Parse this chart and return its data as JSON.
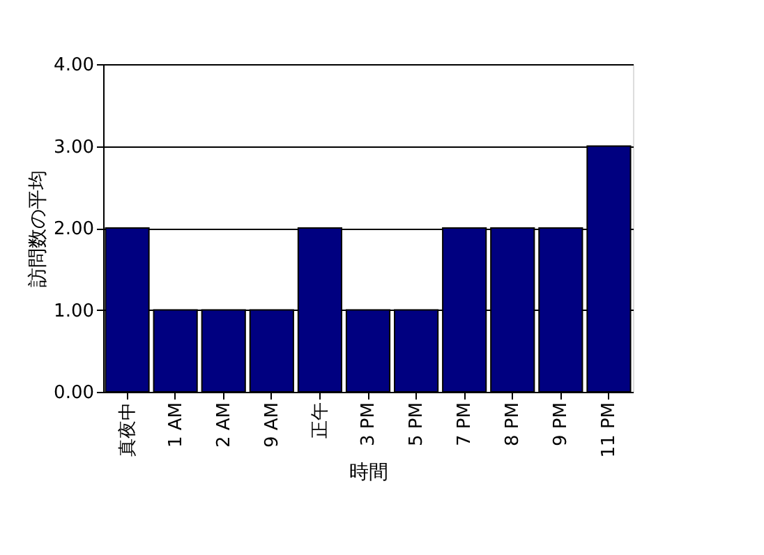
{
  "chart_data": {
    "type": "bar",
    "xlabel": "時間",
    "ylabel": "訪問数の平均",
    "categories": [
      "真夜中",
      "1 AM",
      "2 AM",
      "9 AM",
      "正午",
      "3 PM",
      "5 PM",
      "7 PM",
      "8 PM",
      "9 PM",
      "11 PM"
    ],
    "series": [
      {
        "color": "#000080",
        "values": [
          2,
          1,
          1,
          1,
          2,
          1,
          1,
          2,
          2,
          2,
          3
        ]
      }
    ],
    "ylim": [
      0,
      4
    ],
    "yticks": [
      {
        "value": 0,
        "label": "0.00"
      },
      {
        "value": 1,
        "label": "1.00"
      },
      {
        "value": 2,
        "label": "2.00"
      },
      {
        "value": 3,
        "label": "3.00"
      },
      {
        "value": 4,
        "label": "4.00"
      }
    ],
    "grid": "y"
  }
}
